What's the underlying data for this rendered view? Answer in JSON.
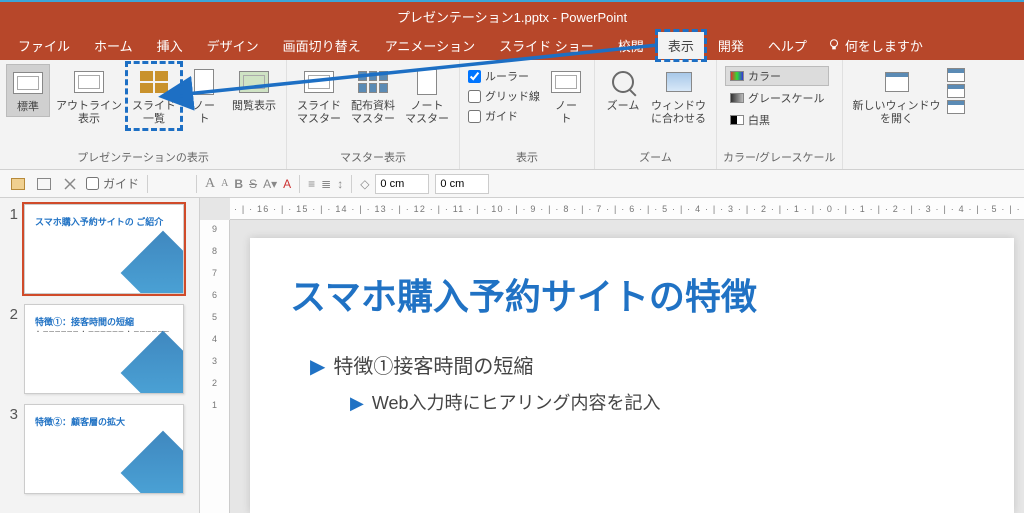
{
  "title": "プレゼンテーション1.pptx  -  PowerPoint",
  "menu": {
    "file": "ファイル",
    "home": "ホーム",
    "insert": "挿入",
    "design": "デザイン",
    "transitions": "画面切り替え",
    "animations": "アニメーション",
    "slideshow": "スライド ショー",
    "review": "校閲",
    "view": "表示",
    "developer": "開発",
    "help": "ヘルプ",
    "tell_me": "何をしますか"
  },
  "ribbon": {
    "group_presentation_views": "プレゼンテーションの表示",
    "group_master_views": "マスター表示",
    "group_show": "表示",
    "group_zoom": "ズーム",
    "group_color": "カラー/グレースケール",
    "normal": "標準",
    "outline": "アウトライン\n表示",
    "slide_sorter": "スライド\n一覧",
    "notes_page": "ノー\nト",
    "reading": "閲覧表示",
    "slide_master": "スライド\nマスター",
    "handout_master": "配布資料\nマスター",
    "notes_master": "ノート\nマスター",
    "ruler": "ルーラー",
    "gridlines": "グリッド線",
    "guides": "ガイド",
    "notes_btn": "ノー\nト",
    "zoom": "ズーム",
    "fit": "ウィンドウ\nに合わせる",
    "color": "カラー",
    "grayscale": "グレースケール",
    "bw": "白黒",
    "new_window": "新しいウィンドウ\nを開く"
  },
  "qat": {
    "guides_label": "ガイド",
    "spin1": "0 cm",
    "spin2": "0 cm"
  },
  "ruler_h": "· | · 16 · | · 15 · | · 14 · | · 13 · | · 12 · | · 11 · | · 10 · | · 9 · | · 8 · | · 7 · | · 6 · | · 5 · | · 4 · | · 3 · | · 2 · | · 1 · | · 0 · | · 1 · | · 2 · | · 3 · | · 4 · | · 5 · | · 6 · | · 7",
  "ruler_v": [
    "9",
    "8",
    "7",
    "6",
    "5",
    "4",
    "3",
    "2",
    "1",
    "0"
  ],
  "thumbs": [
    {
      "num": "1",
      "title": "スマホ購入予約サイトの\nご紹介",
      "body": ""
    },
    {
      "num": "2",
      "title": "特徴①：接客時間の短縮",
      "body": "・ ーーーーーー\n・ ーーーーーー\n・ ーーーーーー"
    },
    {
      "num": "3",
      "title": "特徴②：顧客層の拡大",
      "body": ""
    }
  ],
  "slide": {
    "title": "スマホ購入予約サイトの特徴",
    "b1": "特徴①接客時間の短縮",
    "b2": "Web入力時にヒアリング内容を記入"
  },
  "colors": {
    "accent": "#b7472a",
    "link": "#2072c4"
  }
}
